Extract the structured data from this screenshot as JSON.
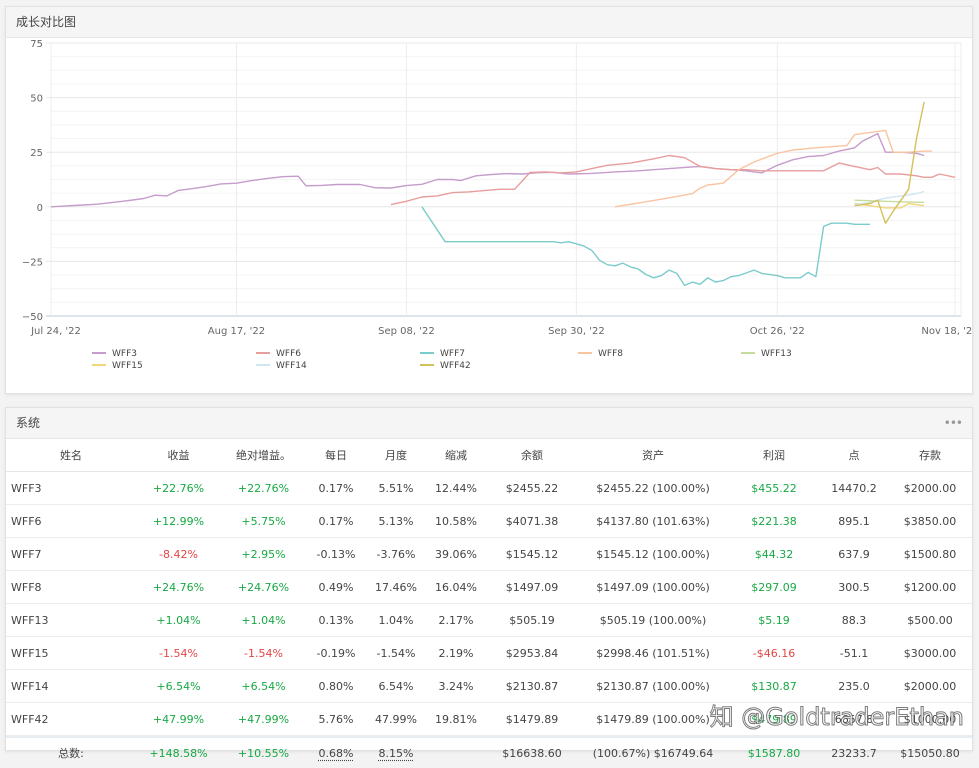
{
  "chart_card": {
    "title": "成长对比图"
  },
  "chart_data": {
    "type": "line",
    "title": "成长对比图",
    "xlabel": "",
    "ylabel": "",
    "ylim": [
      -50,
      75
    ],
    "yticks": [
      75,
      50,
      25,
      0,
      -25,
      -50
    ],
    "xlim_days": [
      0,
      117
    ],
    "xticks": [
      {
        "label": "Jul 24, '22",
        "day": 0
      },
      {
        "label": "Aug 17, '22",
        "day": 24
      },
      {
        "label": "Sep 08, '22",
        "day": 46
      },
      {
        "label": "Sep 30, '22",
        "day": 68
      },
      {
        "label": "Oct 26, '22",
        "day": 94
      },
      {
        "label": "Nov 18, '22",
        "day": 117
      }
    ],
    "grid": true,
    "legend_position": "bottom",
    "series": [
      {
        "name": "WFF3",
        "color": "#c59ccb",
        "points": [
          [
            0,
            0
          ],
          [
            3,
            0.6
          ],
          [
            6,
            1.2
          ],
          [
            9,
            2.4
          ],
          [
            12,
            3.8
          ],
          [
            13.5,
            5.3
          ],
          [
            15,
            5
          ],
          [
            16.5,
            7.5
          ],
          [
            18,
            8.2
          ],
          [
            20,
            9.2
          ],
          [
            22,
            10.5
          ],
          [
            24,
            10.8
          ],
          [
            26,
            12
          ],
          [
            28,
            13
          ],
          [
            30,
            13.8
          ],
          [
            32,
            14
          ],
          [
            33,
            9.6
          ],
          [
            35,
            9.8
          ],
          [
            37,
            10.2
          ],
          [
            40,
            10.2
          ],
          [
            42,
            8.7
          ],
          [
            44,
            8.6
          ],
          [
            46,
            9.7
          ],
          [
            48,
            10.3
          ],
          [
            50,
            12.5
          ],
          [
            52,
            12.5
          ],
          [
            53,
            12
          ],
          [
            55,
            14.2
          ],
          [
            57,
            14.8
          ],
          [
            59,
            15.2
          ],
          [
            61,
            15
          ],
          [
            63,
            15.6
          ],
          [
            65,
            15.8
          ],
          [
            67,
            15
          ],
          [
            70,
            15.3
          ],
          [
            73,
            16
          ],
          [
            76,
            16.5
          ],
          [
            80,
            17.5
          ],
          [
            84,
            18.5
          ],
          [
            86,
            17.5
          ],
          [
            88,
            17
          ],
          [
            90,
            16.5
          ],
          [
            92,
            15.5
          ],
          [
            94,
            19
          ],
          [
            96,
            21.5
          ],
          [
            98,
            23
          ],
          [
            100,
            23.5
          ],
          [
            102,
            25.5
          ],
          [
            104,
            27
          ],
          [
            105,
            30
          ],
          [
            107,
            33.5
          ],
          [
            108,
            25
          ],
          [
            110,
            25
          ],
          [
            112,
            24.5
          ],
          [
            113,
            23.5
          ]
        ]
      },
      {
        "name": "WFF6",
        "color": "#e89d9d",
        "points": [
          [
            44,
            1
          ],
          [
            46,
            2.5
          ],
          [
            48,
            4.5
          ],
          [
            50,
            5
          ],
          [
            52,
            6.5
          ],
          [
            54,
            6.8
          ],
          [
            58,
            8
          ],
          [
            60,
            8
          ],
          [
            62,
            15.7
          ],
          [
            64,
            16
          ],
          [
            66,
            15.5
          ],
          [
            68,
            16
          ],
          [
            70,
            17.5
          ],
          [
            72,
            19
          ],
          [
            75,
            20
          ],
          [
            78,
            22
          ],
          [
            80,
            23.5
          ],
          [
            82,
            22.5
          ],
          [
            84,
            18.5
          ],
          [
            86,
            17.5
          ],
          [
            88,
            17
          ],
          [
            90,
            17
          ],
          [
            92,
            16.5
          ],
          [
            94,
            16.5
          ],
          [
            96,
            16.5
          ],
          [
            100,
            16.5
          ],
          [
            102,
            20
          ],
          [
            104,
            18.5
          ],
          [
            106,
            17
          ],
          [
            107,
            18
          ],
          [
            108,
            15
          ],
          [
            110,
            15
          ],
          [
            112,
            14.2
          ],
          [
            113,
            13.5
          ],
          [
            114,
            13.5
          ],
          [
            115,
            15
          ],
          [
            117,
            13.5
          ]
        ]
      },
      {
        "name": "WFF7",
        "color": "#7ccbcb",
        "points": [
          [
            48,
            0
          ],
          [
            51,
            -16
          ],
          [
            65,
            -16
          ],
          [
            66,
            -16.5
          ],
          [
            67,
            -16
          ],
          [
            69,
            -18
          ],
          [
            70,
            -20
          ],
          [
            71,
            -24.5
          ],
          [
            72,
            -26.5
          ],
          [
            73,
            -27
          ],
          [
            74,
            -25.8
          ],
          [
            75,
            -27.5
          ],
          [
            76,
            -28.5
          ],
          [
            77,
            -31
          ],
          [
            78,
            -32.5
          ],
          [
            79,
            -31.5
          ],
          [
            80,
            -29
          ],
          [
            81,
            -30.5
          ],
          [
            82,
            -36
          ],
          [
            83,
            -34.5
          ],
          [
            84,
            -35.5
          ],
          [
            85,
            -32.5
          ],
          [
            86,
            -34.5
          ],
          [
            87,
            -33.8
          ],
          [
            88,
            -32
          ],
          [
            89,
            -31.5
          ],
          [
            91,
            -29
          ],
          [
            92,
            -30.5
          ],
          [
            94,
            -31.5
          ],
          [
            95,
            -32.5
          ],
          [
            97,
            -32.5
          ],
          [
            98,
            -30
          ],
          [
            99,
            -32
          ],
          [
            100,
            -9
          ],
          [
            101,
            -7.5
          ],
          [
            103,
            -7.5
          ],
          [
            104,
            -8
          ],
          [
            106,
            -8
          ]
        ]
      },
      {
        "name": "WFF8",
        "color": "#f9c4a0",
        "points": [
          [
            73,
            0
          ],
          [
            79,
            3.5
          ],
          [
            83,
            6
          ],
          [
            84,
            8.5
          ],
          [
            85,
            10
          ],
          [
            87,
            10.8
          ],
          [
            89,
            17
          ],
          [
            91,
            20.5
          ],
          [
            94,
            24.5
          ],
          [
            96,
            26
          ],
          [
            99,
            27
          ],
          [
            101,
            27.5
          ],
          [
            103,
            28
          ],
          [
            104,
            33
          ],
          [
            105,
            33.5
          ],
          [
            108,
            35
          ],
          [
            109,
            25
          ],
          [
            111,
            25
          ],
          [
            113,
            25.5
          ],
          [
            114,
            25.5
          ]
        ]
      },
      {
        "name": "WFF13",
        "color": "#c6dc9c",
        "points": [
          [
            104,
            3
          ],
          [
            108,
            2.5
          ],
          [
            113,
            2
          ]
        ]
      },
      {
        "name": "WFF15",
        "color": "#f2d67a",
        "points": [
          [
            104,
            1.5
          ],
          [
            106,
            0.5
          ],
          [
            108,
            -0.5
          ],
          [
            110,
            -0.5
          ],
          [
            111,
            1.5
          ],
          [
            113,
            0.5
          ]
        ]
      },
      {
        "name": "WFF14",
        "color": "#cfe6f5",
        "points": [
          [
            104,
            1
          ],
          [
            106,
            2
          ],
          [
            108,
            4
          ],
          [
            110,
            5
          ],
          [
            112,
            6
          ],
          [
            113,
            7
          ]
        ]
      },
      {
        "name": "WFF42",
        "color": "#d4c05a",
        "points": [
          [
            104,
            0.5
          ],
          [
            106,
            1.5
          ],
          [
            107,
            3
          ],
          [
            108,
            -7.5
          ],
          [
            109,
            -2
          ],
          [
            111,
            8
          ],
          [
            112,
            31
          ],
          [
            113,
            48
          ]
        ]
      }
    ]
  },
  "legend": {
    "items": [
      {
        "name": "WFF3",
        "color": "#c59ccb"
      },
      {
        "name": "WFF6",
        "color": "#e89d9d"
      },
      {
        "name": "WFF7",
        "color": "#7ccbcb"
      },
      {
        "name": "WFF8",
        "color": "#f9c4a0"
      },
      {
        "name": "WFF13",
        "color": "#c6dc9c"
      },
      {
        "name": "WFF15",
        "color": "#f2d67a"
      },
      {
        "name": "WFF14",
        "color": "#cfe6f5"
      },
      {
        "name": "WFF42",
        "color": "#d4c05a"
      }
    ]
  },
  "table_card": {
    "title": "系统",
    "more_icon": "•••",
    "columns": [
      "姓名",
      "收益",
      "绝对增益。",
      "每日",
      "月度",
      "缩减",
      "余额",
      "资产",
      "利润",
      "点",
      "存款"
    ],
    "rows": [
      {
        "name": "WFF3",
        "gain": "+22.76%",
        "gain_sign": "pos",
        "abs_gain": "+22.76%",
        "abs_sign": "pos",
        "daily": "0.17%",
        "monthly": "5.51%",
        "drawdown": "12.44%",
        "balance": "$2455.22",
        "equity": "$2455.22 (100.00%)",
        "profit": "$455.22",
        "profit_sign": "pos",
        "points": "14470.2",
        "deposit": "$2000.00"
      },
      {
        "name": "WFF6",
        "gain": "+12.99%",
        "gain_sign": "pos",
        "abs_gain": "+5.75%",
        "abs_sign": "pos",
        "daily": "0.17%",
        "monthly": "5.13%",
        "drawdown": "10.58%",
        "balance": "$4071.38",
        "equity": "$4137.80 (101.63%)",
        "profit": "$221.38",
        "profit_sign": "pos",
        "points": "895.1",
        "deposit": "$3850.00"
      },
      {
        "name": "WFF7",
        "gain": "-8.42%",
        "gain_sign": "neg",
        "abs_gain": "+2.95%",
        "abs_sign": "pos",
        "daily": "-0.13%",
        "monthly": "-3.76%",
        "drawdown": "39.06%",
        "balance": "$1545.12",
        "equity": "$1545.12 (100.00%)",
        "profit": "$44.32",
        "profit_sign": "pos",
        "points": "637.9",
        "deposit": "$1500.80"
      },
      {
        "name": "WFF8",
        "gain": "+24.76%",
        "gain_sign": "pos",
        "abs_gain": "+24.76%",
        "abs_sign": "pos",
        "daily": "0.49%",
        "monthly": "17.46%",
        "drawdown": "16.04%",
        "balance": "$1497.09",
        "equity": "$1497.09 (100.00%)",
        "profit": "$297.09",
        "profit_sign": "pos",
        "points": "300.5",
        "deposit": "$1200.00"
      },
      {
        "name": "WFF13",
        "gain": "+1.04%",
        "gain_sign": "pos",
        "abs_gain": "+1.04%",
        "abs_sign": "pos",
        "daily": "0.13%",
        "monthly": "1.04%",
        "drawdown": "2.17%",
        "balance": "$505.19",
        "equity": "$505.19 (100.00%)",
        "profit": "$5.19",
        "profit_sign": "pos",
        "points": "88.3",
        "deposit": "$500.00"
      },
      {
        "name": "WFF15",
        "gain": "-1.54%",
        "gain_sign": "neg",
        "abs_gain": "-1.54%",
        "abs_sign": "neg",
        "daily": "-0.19%",
        "monthly": "-1.54%",
        "drawdown": "2.19%",
        "balance": "$2953.84",
        "equity": "$2998.46 (101.51%)",
        "profit": "-$46.16",
        "profit_sign": "neg",
        "points": "-51.1",
        "deposit": "$3000.00"
      },
      {
        "name": "WFF14",
        "gain": "+6.54%",
        "gain_sign": "pos",
        "abs_gain": "+6.54%",
        "abs_sign": "pos",
        "daily": "0.80%",
        "monthly": "6.54%",
        "drawdown": "3.24%",
        "balance": "$2130.87",
        "equity": "$2130.87 (100.00%)",
        "profit": "$130.87",
        "profit_sign": "pos",
        "points": "235.0",
        "deposit": "$2000.00"
      },
      {
        "name": "WFF42",
        "gain": "+47.99%",
        "gain_sign": "pos",
        "abs_gain": "+47.99%",
        "abs_sign": "pos",
        "daily": "5.76%",
        "monthly": "47.99%",
        "drawdown": "19.81%",
        "balance": "$1479.89",
        "equity": "$1479.89 (100.00%)",
        "profit": "$479.89",
        "profit_sign": "pos",
        "points": "6657.8",
        "deposit": "$1000.00"
      }
    ],
    "total": {
      "label": "总数:",
      "gain": "+148.58%",
      "abs_gain": "+10.55%",
      "daily": "0.68%",
      "monthly": "8.15%",
      "drawdown": "",
      "balance": "$16638.60",
      "equity": "(100.67%) $16749.64",
      "profit": "$1587.80",
      "points": "23233.7",
      "deposit": "$15050.80"
    }
  },
  "watermark": "知 @GoldtraderEthan"
}
